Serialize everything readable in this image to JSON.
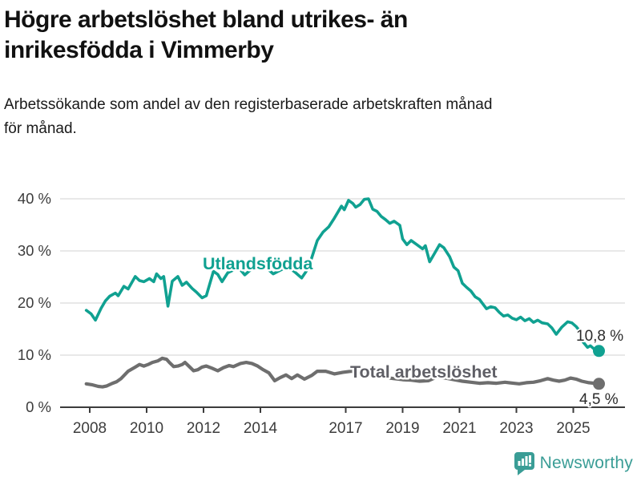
{
  "header": {
    "title": "Högre arbetslöshet bland utrikes- än inrikesfödda i Vimmerby",
    "title_lines": [
      "Högre arbetslöshet bland utrikes- än",
      "inrikesfödda i Vimmerby"
    ],
    "subtitle": "Arbetssökande som andel av den registerbaserade arbetskraften månad för månad.",
    "subtitle_lines": [
      "Arbetssökande som andel av den registerbaserade arbetskraften månad",
      "för månad."
    ]
  },
  "chart_data": {
    "type": "line",
    "title": "Högre arbetslöshet bland utrikes- än inrikesfödda i Vimmerby",
    "subtitle": "Arbetssökande som andel av den registerbaserade arbetskraften månad för månad.",
    "grid": "horizontal",
    "legend_position": "inline-labels",
    "colors": {
      "gridline": "#d9d9d9",
      "axis": "#3c3c3c",
      "tick_text": "#3c3c3c",
      "end_label_text": "#2b2b2b"
    },
    "x_axis": {
      "range": [
        2007.8,
        2026.3
      ],
      "ticks": [
        {
          "label": "2008",
          "value": 2008
        },
        {
          "label": "2010",
          "value": 2010
        },
        {
          "label": "2012",
          "value": 2012
        },
        {
          "label": "2014",
          "value": 2014
        },
        {
          "label": "2017",
          "value": 2017
        },
        {
          "label": "2019",
          "value": 2019
        },
        {
          "label": "2021",
          "value": 2021
        },
        {
          "label": "2023",
          "value": 2023
        },
        {
          "label": "2025",
          "value": 2025
        }
      ]
    },
    "y_axis": {
      "range": [
        0,
        42
      ],
      "unit": "%",
      "ticks": [
        {
          "label": "0 %",
          "value": 0
        },
        {
          "label": "10 %",
          "value": 10
        },
        {
          "label": "20 %",
          "value": 20
        },
        {
          "label": "30 %",
          "value": 30
        },
        {
          "label": "40 %",
          "value": 40
        }
      ]
    },
    "series": [
      {
        "name": "Utlandsfödda",
        "color": "#10a191",
        "stroke_width": 3.6,
        "end_label": "10,8 %",
        "end_value": 10.8,
        "points": [
          [
            2007.88,
            18.6
          ],
          [
            2008.05,
            17.9
          ],
          [
            2008.2,
            16.7
          ],
          [
            2008.4,
            19.0
          ],
          [
            2008.55,
            20.4
          ],
          [
            2008.7,
            21.3
          ],
          [
            2008.9,
            21.9
          ],
          [
            2009.0,
            21.4
          ],
          [
            2009.2,
            23.2
          ],
          [
            2009.35,
            22.7
          ],
          [
            2009.6,
            25.1
          ],
          [
            2009.75,
            24.3
          ],
          [
            2009.9,
            24.1
          ],
          [
            2010.1,
            24.7
          ],
          [
            2010.25,
            24.1
          ],
          [
            2010.35,
            25.6
          ],
          [
            2010.5,
            24.7
          ],
          [
            2010.6,
            25.1
          ],
          [
            2010.75,
            19.4
          ],
          [
            2010.9,
            24.2
          ],
          [
            2011.1,
            25.1
          ],
          [
            2011.25,
            23.4
          ],
          [
            2011.4,
            24.0
          ],
          [
            2011.6,
            22.8
          ],
          [
            2011.75,
            22.1
          ],
          [
            2011.95,
            21.0
          ],
          [
            2012.1,
            21.4
          ],
          [
            2012.2,
            23.3
          ],
          [
            2012.35,
            26.1
          ],
          [
            2012.5,
            25.5
          ],
          [
            2012.65,
            24.1
          ],
          [
            2012.85,
            25.8
          ],
          [
            2013.0,
            26.2
          ],
          [
            2013.2,
            27.0
          ],
          [
            2013.45,
            25.4
          ],
          [
            2013.7,
            26.6
          ],
          [
            2013.95,
            27.2
          ],
          [
            2014.2,
            26.8
          ],
          [
            2014.45,
            25.6
          ],
          [
            2014.7,
            26.3
          ],
          [
            2014.95,
            27.0
          ],
          [
            2015.2,
            26.0
          ],
          [
            2015.45,
            24.8
          ],
          [
            2015.6,
            26.0
          ],
          [
            2015.8,
            28.6
          ],
          [
            2016.0,
            32.0
          ],
          [
            2016.2,
            33.6
          ],
          [
            2016.4,
            34.6
          ],
          [
            2016.6,
            36.3
          ],
          [
            2016.85,
            38.6
          ],
          [
            2016.95,
            37.9
          ],
          [
            2017.1,
            39.7
          ],
          [
            2017.25,
            39.1
          ],
          [
            2017.35,
            38.4
          ],
          [
            2017.5,
            38.9
          ],
          [
            2017.65,
            39.9
          ],
          [
            2017.8,
            40.0
          ],
          [
            2017.95,
            38.0
          ],
          [
            2018.1,
            37.6
          ],
          [
            2018.25,
            36.6
          ],
          [
            2018.4,
            36.0
          ],
          [
            2018.55,
            35.3
          ],
          [
            2018.7,
            35.7
          ],
          [
            2018.9,
            34.9
          ],
          [
            2019.0,
            32.3
          ],
          [
            2019.15,
            31.2
          ],
          [
            2019.3,
            32.0
          ],
          [
            2019.5,
            31.2
          ],
          [
            2019.7,
            30.4
          ],
          [
            2019.8,
            31.0
          ],
          [
            2019.95,
            27.9
          ],
          [
            2020.1,
            29.3
          ],
          [
            2020.3,
            31.2
          ],
          [
            2020.45,
            30.6
          ],
          [
            2020.65,
            28.9
          ],
          [
            2020.8,
            26.9
          ],
          [
            2020.95,
            26.2
          ],
          [
            2021.1,
            23.8
          ],
          [
            2021.25,
            23.0
          ],
          [
            2021.4,
            22.3
          ],
          [
            2021.55,
            21.2
          ],
          [
            2021.7,
            20.7
          ],
          [
            2021.85,
            19.6
          ],
          [
            2021.95,
            18.9
          ],
          [
            2022.1,
            19.3
          ],
          [
            2022.25,
            19.1
          ],
          [
            2022.4,
            18.2
          ],
          [
            2022.55,
            17.5
          ],
          [
            2022.7,
            17.7
          ],
          [
            2022.85,
            17.1
          ],
          [
            2023.0,
            16.8
          ],
          [
            2023.15,
            17.3
          ],
          [
            2023.3,
            16.6
          ],
          [
            2023.45,
            17.0
          ],
          [
            2023.6,
            16.3
          ],
          [
            2023.75,
            16.7
          ],
          [
            2023.9,
            16.2
          ],
          [
            2024.1,
            16.0
          ],
          [
            2024.25,
            15.2
          ],
          [
            2024.4,
            14.0
          ],
          [
            2024.6,
            15.4
          ],
          [
            2024.8,
            16.4
          ],
          [
            2024.95,
            16.2
          ],
          [
            2025.1,
            15.5
          ],
          [
            2025.2,
            14.8
          ],
          [
            2025.35,
            12.5
          ],
          [
            2025.5,
            11.5
          ],
          [
            2025.6,
            11.8
          ],
          [
            2025.75,
            11.1
          ],
          [
            2025.9,
            10.8
          ]
        ]
      },
      {
        "name": "Total arbetslöshet",
        "color": "#6e6e6e",
        "stroke_width": 4.2,
        "end_label": "4,5 %",
        "end_value": 4.5,
        "points": [
          [
            2007.88,
            4.5
          ],
          [
            2008.1,
            4.3
          ],
          [
            2008.3,
            4.0
          ],
          [
            2008.45,
            3.9
          ],
          [
            2008.6,
            4.1
          ],
          [
            2008.8,
            4.6
          ],
          [
            2008.95,
            4.9
          ],
          [
            2009.1,
            5.5
          ],
          [
            2009.35,
            6.9
          ],
          [
            2009.6,
            7.7
          ],
          [
            2009.75,
            8.2
          ],
          [
            2009.9,
            7.9
          ],
          [
            2010.05,
            8.2
          ],
          [
            2010.2,
            8.6
          ],
          [
            2010.4,
            8.9
          ],
          [
            2010.55,
            9.4
          ],
          [
            2010.7,
            9.2
          ],
          [
            2010.8,
            8.6
          ],
          [
            2010.95,
            7.8
          ],
          [
            2011.1,
            7.9
          ],
          [
            2011.25,
            8.2
          ],
          [
            2011.35,
            8.6
          ],
          [
            2011.5,
            7.8
          ],
          [
            2011.65,
            7.0
          ],
          [
            2011.8,
            7.2
          ],
          [
            2011.95,
            7.7
          ],
          [
            2012.1,
            7.9
          ],
          [
            2012.3,
            7.5
          ],
          [
            2012.5,
            7.0
          ],
          [
            2012.7,
            7.6
          ],
          [
            2012.9,
            8.0
          ],
          [
            2013.05,
            7.8
          ],
          [
            2013.3,
            8.4
          ],
          [
            2013.5,
            8.6
          ],
          [
            2013.7,
            8.4
          ],
          [
            2013.9,
            7.9
          ],
          [
            2014.1,
            7.2
          ],
          [
            2014.3,
            6.6
          ],
          [
            2014.5,
            5.1
          ],
          [
            2014.7,
            5.7
          ],
          [
            2014.9,
            6.2
          ],
          [
            2015.1,
            5.5
          ],
          [
            2015.3,
            6.2
          ],
          [
            2015.55,
            5.4
          ],
          [
            2015.8,
            6.1
          ],
          [
            2016.0,
            6.9
          ],
          [
            2016.3,
            6.9
          ],
          [
            2016.6,
            6.4
          ],
          [
            2016.9,
            6.7
          ],
          [
            2017.2,
            6.9
          ],
          [
            2017.5,
            6.6
          ],
          [
            2017.8,
            6.2
          ],
          [
            2018.1,
            5.9
          ],
          [
            2018.4,
            5.7
          ],
          [
            2018.7,
            5.5
          ],
          [
            2019.0,
            5.3
          ],
          [
            2019.3,
            5.2
          ],
          [
            2019.6,
            5.0
          ],
          [
            2019.9,
            5.1
          ],
          [
            2020.2,
            5.8
          ],
          [
            2020.5,
            5.6
          ],
          [
            2020.8,
            5.3
          ],
          [
            2021.1,
            5.0
          ],
          [
            2021.4,
            4.8
          ],
          [
            2021.7,
            4.6
          ],
          [
            2022.0,
            4.7
          ],
          [
            2022.3,
            4.6
          ],
          [
            2022.6,
            4.8
          ],
          [
            2022.9,
            4.6
          ],
          [
            2023.1,
            4.5
          ],
          [
            2023.35,
            4.7
          ],
          [
            2023.6,
            4.8
          ],
          [
            2023.85,
            5.1
          ],
          [
            2024.1,
            5.5
          ],
          [
            2024.3,
            5.2
          ],
          [
            2024.5,
            5.0
          ],
          [
            2024.7,
            5.2
          ],
          [
            2024.9,
            5.6
          ],
          [
            2025.1,
            5.4
          ],
          [
            2025.3,
            5.0
          ],
          [
            2025.55,
            4.7
          ],
          [
            2025.75,
            4.6
          ],
          [
            2025.9,
            4.5
          ]
        ]
      }
    ]
  },
  "footer": {
    "brand": "Newsworthy",
    "brand_color": "#3a9d96",
    "logo_icon": "bar-chart-speech-bubble-icon"
  }
}
